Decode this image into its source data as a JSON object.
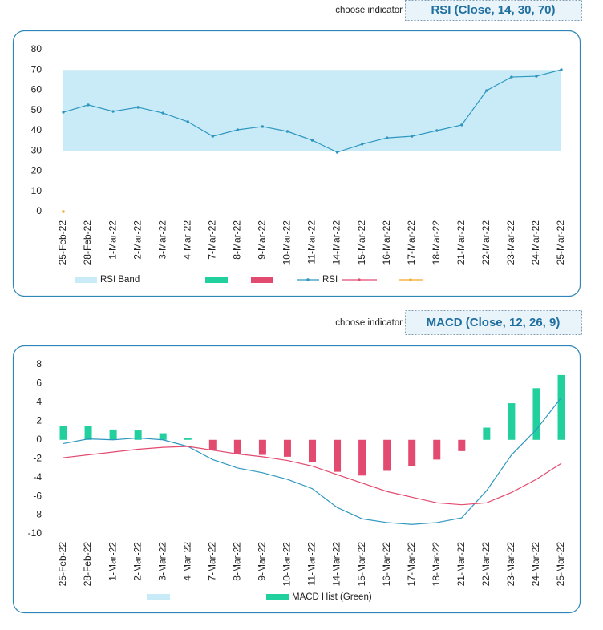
{
  "selector_label": "choose indicator",
  "indicators": [
    "RSI (Close, 14, 30, 70)",
    "MACD (Close, 12, 26, 9)"
  ],
  "chart_data": [
    {
      "type": "line",
      "categories": [
        "25-Feb-22",
        "28-Feb-22",
        "1-Mar-22",
        "2-Mar-22",
        "3-Mar-22",
        "4-Mar-22",
        "7-Mar-22",
        "8-Mar-22",
        "9-Mar-22",
        "10-Mar-22",
        "11-Mar-22",
        "14-Mar-22",
        "15-Mar-22",
        "16-Mar-22",
        "17-Mar-22",
        "18-Mar-22",
        "21-Mar-22",
        "22-Mar-22",
        "23-Mar-22",
        "24-Mar-22",
        "25-Mar-22"
      ],
      "ylim": [
        0,
        80
      ],
      "yticks": [
        0,
        10,
        20,
        30,
        40,
        50,
        60,
        70,
        80
      ],
      "series": [
        {
          "name": "RSI Band",
          "type": "band",
          "color": "#c9ebf8",
          "range": [
            30,
            70
          ]
        },
        {
          "name": "RSI",
          "type": "line",
          "color": "#2f97bf",
          "markers": true,
          "values": [
            49.1,
            52.7,
            49.5,
            51.5,
            48.7,
            44.4,
            37.2,
            40.4,
            42,
            39.6,
            35.2,
            29.3,
            33.3,
            36.4,
            37.2,
            40,
            42.8,
            59.8,
            66.5,
            66.9,
            70.1
          ]
        },
        {
          "type": "line",
          "color": "#f5a623",
          "markers": true,
          "values": [
            0,
            null,
            null,
            null,
            null,
            null,
            null,
            null,
            null,
            null,
            null,
            null,
            null,
            null,
            null,
            null,
            null,
            null,
            null,
            null,
            null
          ]
        }
      ]
    },
    {
      "type": "line",
      "categories": [
        "25-Feb-22",
        "28-Feb-22",
        "1-Mar-22",
        "2-Mar-22",
        "3-Mar-22",
        "4-Mar-22",
        "7-Mar-22",
        "8-Mar-22",
        "9-Mar-22",
        "10-Mar-22",
        "11-Mar-22",
        "14-Mar-22",
        "15-Mar-22",
        "16-Mar-22",
        "17-Mar-22",
        "18-Mar-22",
        "21-Mar-22",
        "22-Mar-22",
        "23-Mar-22",
        "24-Mar-22",
        "25-Mar-22"
      ],
      "ylim": [
        -10,
        8
      ],
      "yticks": [
        -10,
        -8,
        -6,
        -4,
        -2,
        0,
        2,
        4,
        6,
        8
      ],
      "series": [
        {
          "name": "MACD Hist (Green)",
          "type": "bar",
          "color": "#22d09e",
          "negative_color": "#e24a70",
          "values": [
            1.5,
            1.5,
            1.1,
            1.0,
            0.7,
            0.2,
            -1.1,
            -1.5,
            -1.6,
            -1.8,
            -2.4,
            -3.4,
            -3.8,
            -3.3,
            -2.8,
            -2.1,
            -1.2,
            1.3,
            3.9,
            5.5,
            6.9
          ]
        },
        {
          "type": "line",
          "color": "#2f97bf",
          "values": [
            -0.4,
            0.1,
            0,
            0.2,
            0,
            -0.7,
            -2.1,
            -3.0,
            -3.5,
            -4.2,
            -5.2,
            -7.2,
            -8.4,
            -8.8,
            -9.0,
            -8.8,
            -8.3,
            -5.4,
            -1.6,
            1.1,
            4.5
          ]
        },
        {
          "type": "line",
          "color": "#e24a70",
          "values": [
            -1.9,
            -1.6,
            -1.3,
            -1.0,
            -0.8,
            -0.7,
            -1.1,
            -1.5,
            -1.8,
            -2.2,
            -2.8,
            -3.7,
            -4.6,
            -5.5,
            -6.1,
            -6.7,
            -6.9,
            -6.7,
            -5.6,
            -4.2,
            -2.5
          ]
        }
      ]
    }
  ]
}
